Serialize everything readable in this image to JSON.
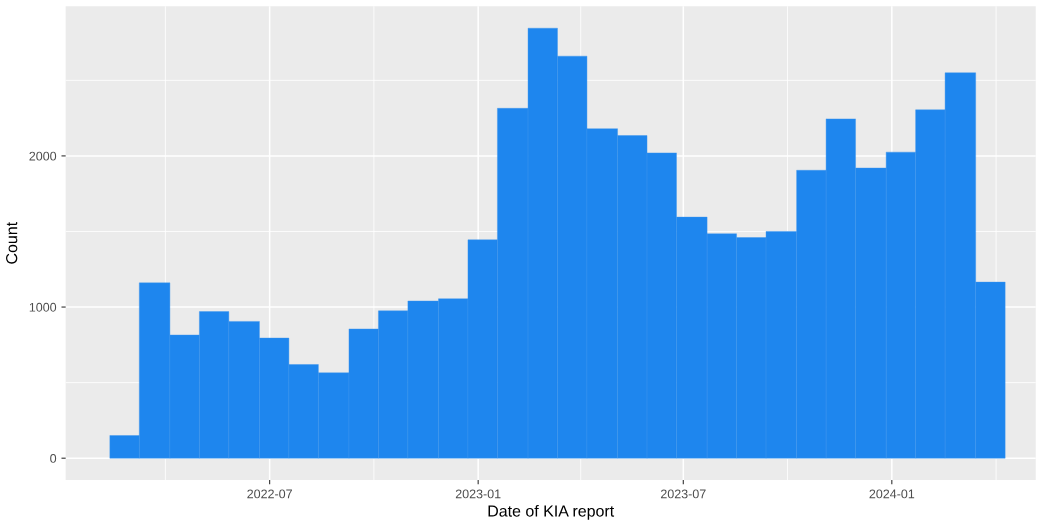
{
  "chart_data": {
    "type": "histogram",
    "xlabel": "Date of KIA report",
    "ylabel": "Count",
    "color": "#1e86ee",
    "bins": [
      "2022-02-10",
      "2022-03-08",
      "2022-04-04",
      "2022-04-30",
      "2022-05-26",
      "2022-06-22",
      "2022-07-18",
      "2022-08-13",
      "2022-09-09",
      "2022-10-05",
      "2022-10-31",
      "2022-11-27",
      "2022-12-23",
      "2023-01-18",
      "2023-02-14",
      "2023-03-12",
      "2023-04-07",
      "2023-05-04",
      "2023-05-30",
      "2023-06-25",
      "2023-07-22",
      "2023-08-17",
      "2023-09-12",
      "2023-10-09",
      "2023-11-04",
      "2023-11-30",
      "2023-12-27",
      "2024-01-22",
      "2024-02-17",
      "2024-03-15",
      "2024-04-10"
    ],
    "values": [
      150,
      1160,
      815,
      970,
      905,
      795,
      620,
      565,
      855,
      975,
      1040,
      1055,
      1445,
      2315,
      2845,
      2660,
      2180,
      2135,
      2020,
      1595,
      1485,
      1460,
      1500,
      1905,
      2245,
      1920,
      2025,
      2305,
      2550,
      1165
    ],
    "xlim": [
      "2022-01-02",
      "2024-05-07"
    ],
    "xticks": [
      "2022-07",
      "2023-01",
      "2023-07",
      "2024-01"
    ],
    "ylim": [
      -145,
      2990
    ],
    "yticks": [
      0,
      1000,
      2000
    ],
    "grid": true
  }
}
